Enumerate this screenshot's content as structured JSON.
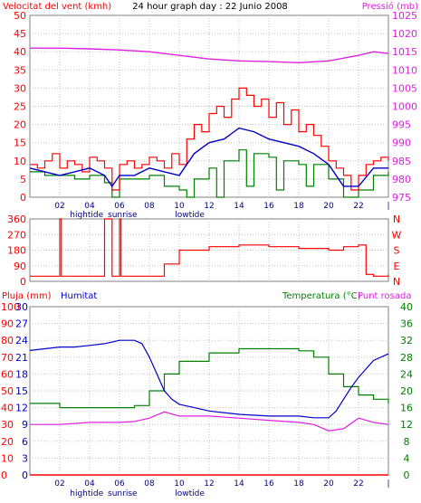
{
  "colors": {
    "frame": "#808080",
    "grid": "#c0c0c0",
    "wind_speed": "#ff0000",
    "wind_avg": "#0000c8",
    "wind_gust_base": "#008000",
    "pressure": "#e020e0",
    "direction": "#ff0000",
    "humidity": "#0000c8",
    "temperature": "#008000",
    "dewpoint": "#e020e0",
    "rain": "#ff0000"
  },
  "chart_data": [
    {
      "id": "wind_pressure",
      "type": "line",
      "title": "24 hour graph day : 22 Junio 2008",
      "left_label": "Velocitat del vent (kmh)",
      "right_label": "Pressió (mb)",
      "x_ticks": [
        "02",
        "04",
        "06",
        "08",
        "10",
        "12",
        "14",
        "16",
        "18",
        "20",
        "22",
        "|"
      ],
      "x_notes": [
        {
          "label": "hightide",
          "x": 3.8
        },
        {
          "label": "sunrise",
          "x": 6.2
        },
        {
          "label": "lowtide",
          "x": 10.7
        }
      ],
      "y_ticks_left": [
        0,
        5,
        10,
        15,
        20,
        25,
        30,
        35,
        40,
        45,
        50
      ],
      "ylim_left": [
        0,
        50
      ],
      "y_ticks_right": [
        975,
        980,
        985,
        990,
        995,
        1000,
        1005,
        1010,
        1015,
        1020,
        1025
      ],
      "ylim_right": [
        975,
        1025
      ],
      "xlim": [
        0,
        24
      ],
      "series": [
        {
          "axis": "left",
          "points": [
            [
              0,
              9
            ],
            [
              0.5,
              8
            ],
            [
              1,
              10
            ],
            [
              1.5,
              12
            ],
            [
              2,
              8
            ],
            [
              2.5,
              10
            ],
            [
              3,
              9
            ],
            [
              3.5,
              7
            ],
            [
              4,
              11
            ],
            [
              4.5,
              10
            ],
            [
              5,
              8
            ],
            [
              5.5,
              2
            ],
            [
              6,
              9
            ],
            [
              6.5,
              10
            ],
            [
              7,
              8
            ],
            [
              7.5,
              9
            ],
            [
              8,
              11
            ],
            [
              8.5,
              10
            ],
            [
              9,
              8
            ],
            [
              9.5,
              12
            ],
            [
              10,
              9
            ],
            [
              10.5,
              16
            ],
            [
              11,
              20
            ],
            [
              11.5,
              18
            ],
            [
              12,
              23
            ],
            [
              12.5,
              25
            ],
            [
              13,
              22
            ],
            [
              13.5,
              27
            ],
            [
              14,
              30
            ],
            [
              14.5,
              28
            ],
            [
              15,
              25
            ],
            [
              15.5,
              27
            ],
            [
              16,
              22
            ],
            [
              16.5,
              26
            ],
            [
              17,
              20
            ],
            [
              17.5,
              24
            ],
            [
              18,
              18
            ],
            [
              18.5,
              20
            ],
            [
              19,
              17
            ],
            [
              19.5,
              14
            ],
            [
              20,
              10
            ],
            [
              20.5,
              8
            ],
            [
              21,
              6
            ],
            [
              21.5,
              2
            ],
            [
              22,
              6
            ],
            [
              22.5,
              9
            ],
            [
              23,
              10
            ],
            [
              23.5,
              11
            ],
            [
              24,
              10
            ]
          ]
        },
        {
          "axis": "left",
          "points": [
            [
              0,
              8
            ],
            [
              1,
              7
            ],
            [
              2,
              6
            ],
            [
              3,
              7
            ],
            [
              4,
              8
            ],
            [
              5,
              6
            ],
            [
              5.5,
              3
            ],
            [
              6,
              6
            ],
            [
              7,
              6
            ],
            [
              8,
              8
            ],
            [
              9,
              7
            ],
            [
              10,
              6
            ],
            [
              11,
              12
            ],
            [
              12,
              15
            ],
            [
              13,
              16
            ],
            [
              14,
              19
            ],
            [
              15,
              18
            ],
            [
              16,
              16
            ],
            [
              17,
              15
            ],
            [
              18,
              14
            ],
            [
              19,
              12
            ],
            [
              20,
              9
            ],
            [
              21,
              3
            ],
            [
              22,
              3
            ],
            [
              23,
              8
            ],
            [
              24,
              8
            ]
          ]
        },
        {
          "axis": "left",
          "points": [
            [
              0,
              7
            ],
            [
              1,
              6
            ],
            [
              2,
              6
            ],
            [
              3,
              5
            ],
            [
              4,
              6
            ],
            [
              5,
              4
            ],
            [
              5.5,
              0
            ],
            [
              6,
              5
            ],
            [
              7,
              5
            ],
            [
              8,
              6
            ],
            [
              9,
              3
            ],
            [
              10,
              2
            ],
            [
              10.5,
              0
            ],
            [
              11,
              5
            ],
            [
              12,
              8
            ],
            [
              12.5,
              0
            ],
            [
              13,
              10
            ],
            [
              14,
              13
            ],
            [
              14.5,
              3
            ],
            [
              15,
              12
            ],
            [
              16,
              11
            ],
            [
              16.5,
              2
            ],
            [
              17,
              10
            ],
            [
              18,
              9
            ],
            [
              18.5,
              3
            ],
            [
              19,
              9
            ],
            [
              20,
              5
            ],
            [
              21,
              0
            ],
            [
              22,
              2
            ],
            [
              23,
              6
            ],
            [
              24,
              7
            ]
          ]
        },
        {
          "axis": "right",
          "points": [
            [
              0,
              1016
            ],
            [
              2,
              1016
            ],
            [
              4,
              1015.8
            ],
            [
              6,
              1015.5
            ],
            [
              8,
              1015
            ],
            [
              10,
              1014
            ],
            [
              12,
              1013
            ],
            [
              14,
              1012.5
            ],
            [
              16,
              1012.3
            ],
            [
              18,
              1012
            ],
            [
              20,
              1012.5
            ],
            [
              22,
              1014
            ],
            [
              23,
              1015
            ],
            [
              24,
              1014.5
            ]
          ]
        }
      ]
    },
    {
      "id": "direction",
      "type": "line",
      "y_ticks_left": [
        0,
        90,
        180,
        270,
        360
      ],
      "ylim": [
        0,
        360
      ],
      "right_labels": [
        "N",
        "W",
        "S",
        "E",
        "N"
      ],
      "xlim": [
        0,
        24
      ],
      "series": [
        {
          "points": [
            [
              0,
              30
            ],
            [
              1,
              30
            ],
            [
              2,
              30
            ],
            [
              2,
              360
            ],
            [
              2.1,
              30
            ],
            [
              5,
              30
            ],
            [
              5,
              360
            ],
            [
              5.5,
              360
            ],
            [
              5.5,
              30
            ],
            [
              6,
              30
            ],
            [
              6,
              360
            ],
            [
              6.1,
              30
            ],
            [
              8,
              30
            ],
            [
              9,
              100
            ],
            [
              10,
              180
            ],
            [
              12,
              200
            ],
            [
              14,
              210
            ],
            [
              16,
              200
            ],
            [
              18,
              190
            ],
            [
              20,
              180
            ],
            [
              21,
              200
            ],
            [
              22,
              210
            ],
            [
              22.5,
              40
            ],
            [
              23,
              30
            ],
            [
              24,
              40
            ]
          ]
        }
      ]
    },
    {
      "id": "humidity_temp",
      "type": "line",
      "left_outer_label": "Pluja (mm)",
      "left_inner_label": "Humitat",
      "right_label_1": "Temperatura (°C)",
      "right_label_2": "Punt rosada",
      "y_ticks_left_outer": [
        0,
        10,
        20,
        30,
        40,
        50,
        60,
        70,
        80,
        90,
        100
      ],
      "y_ticks_left_inner": [
        0,
        3,
        6,
        9,
        12,
        15,
        18,
        21,
        24,
        27,
        30
      ],
      "y_ticks_right": [
        0,
        4,
        8,
        12,
        16,
        20,
        24,
        28,
        32,
        36,
        40
      ],
      "ylim_humidity": [
        0,
        100
      ],
      "ylim_temp": [
        0,
        40
      ],
      "ylim_rain": [
        0,
        30
      ],
      "x_ticks": [
        "02",
        "04",
        "06",
        "08",
        "10",
        "12",
        "14",
        "16",
        "18",
        "20",
        "22",
        "|"
      ],
      "x_notes": [
        {
          "label": "hightide",
          "x": 3.8
        },
        {
          "label": "sunrise",
          "x": 6.2
        },
        {
          "label": "lowtide",
          "x": 10.7
        }
      ],
      "xlim": [
        0,
        24
      ],
      "series": [
        {
          "axis": "humidity",
          "points": [
            [
              0,
              74
            ],
            [
              1,
              75
            ],
            [
              2,
              76
            ],
            [
              3,
              76
            ],
            [
              4,
              77
            ],
            [
              5,
              78
            ],
            [
              6,
              80
            ],
            [
              7,
              80
            ],
            [
              7.5,
              78
            ],
            [
              8,
              70
            ],
            [
              8.5,
              60
            ],
            [
              9,
              50
            ],
            [
              9.5,
              45
            ],
            [
              10,
              42
            ],
            [
              11,
              40
            ],
            [
              12,
              38
            ],
            [
              14,
              36
            ],
            [
              16,
              35
            ],
            [
              18,
              35
            ],
            [
              19,
              34
            ],
            [
              20,
              34
            ],
            [
              20.5,
              38
            ],
            [
              21,
              45
            ],
            [
              21.5,
              52
            ],
            [
              22,
              58
            ],
            [
              23,
              68
            ],
            [
              24,
              72
            ]
          ]
        },
        {
          "axis": "temp",
          "points": [
            [
              0,
              17
            ],
            [
              2,
              16
            ],
            [
              4,
              16
            ],
            [
              6,
              16
            ],
            [
              7,
              16.5
            ],
            [
              8,
              20
            ],
            [
              9,
              24
            ],
            [
              10,
              27
            ],
            [
              12,
              29
            ],
            [
              14,
              30
            ],
            [
              16,
              30
            ],
            [
              18,
              29.5
            ],
            [
              19,
              28
            ],
            [
              20,
              24
            ],
            [
              21,
              21
            ],
            [
              22,
              19
            ],
            [
              23,
              18
            ],
            [
              24,
              17
            ]
          ]
        },
        {
          "axis": "temp",
          "points": [
            [
              0,
              12
            ],
            [
              2,
              12
            ],
            [
              4,
              12.5
            ],
            [
              6,
              12.5
            ],
            [
              7,
              12.7
            ],
            [
              8,
              13.5
            ],
            [
              9,
              15
            ],
            [
              10,
              14
            ],
            [
              12,
              14
            ],
            [
              14,
              13.5
            ],
            [
              16,
              13
            ],
            [
              18,
              12.5
            ],
            [
              19,
              12
            ],
            [
              20,
              10.5
            ],
            [
              21,
              11
            ],
            [
              22,
              13.5
            ],
            [
              23,
              12.5
            ],
            [
              24,
              12
            ]
          ]
        },
        {
          "axis": "rain",
          "points": [
            [
              0,
              0
            ],
            [
              24,
              0
            ]
          ]
        }
      ]
    }
  ]
}
